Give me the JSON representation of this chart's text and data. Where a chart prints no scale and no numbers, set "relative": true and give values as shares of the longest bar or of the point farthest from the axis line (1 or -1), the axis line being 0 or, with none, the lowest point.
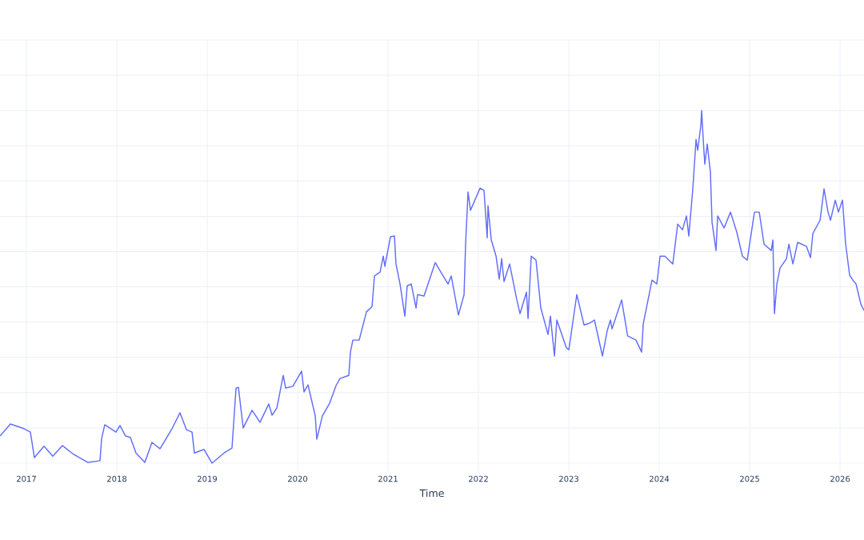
{
  "chart_data": {
    "type": "line",
    "xlabel": "Time",
    "relative": true,
    "grid": true,
    "color": "#636efa",
    "xlim": [
      2016.708,
      2026.265
    ],
    "xticks": [
      2017,
      2018,
      2019,
      2020,
      2021,
      2022,
      2023,
      2024,
      2025,
      2026
    ],
    "x": [
      2016.708,
      2016.823,
      2016.973,
      2017.044,
      2017.088,
      2017.195,
      2017.292,
      2017.398,
      2017.522,
      2017.681,
      2017.814,
      2017.832,
      2017.867,
      2017.991,
      2018.035,
      2018.097,
      2018.15,
      2018.212,
      2018.31,
      2018.389,
      2018.478,
      2018.611,
      2018.699,
      2018.77,
      2018.832,
      2018.858,
      2018.965,
      2019.053,
      2019.186,
      2019.274,
      2019.319,
      2019.345,
      2019.398,
      2019.496,
      2019.584,
      2019.681,
      2019.717,
      2019.77,
      2019.841,
      2019.867,
      2019.947,
      2020.044,
      2020.071,
      2020.115,
      2020.195,
      2020.212,
      2020.274,
      2020.354,
      2020.425,
      2020.469,
      2020.566,
      2020.584,
      2020.611,
      2020.681,
      2020.761,
      2020.823,
      2020.85,
      2020.912,
      2020.947,
      2020.965,
      2021.027,
      2021.071,
      2021.088,
      2021.133,
      2021.186,
      2021.212,
      2021.257,
      2021.31,
      2021.327,
      2021.398,
      2021.522,
      2021.584,
      2021.664,
      2021.699,
      2021.779,
      2021.841,
      2021.858,
      2021.885,
      2021.912,
      2022.018,
      2022.062,
      2022.097,
      2022.106,
      2022.142,
      2022.195,
      2022.23,
      2022.257,
      2022.283,
      2022.345,
      2022.425,
      2022.46,
      2022.531,
      2022.549,
      2022.584,
      2022.637,
      2022.69,
      2022.77,
      2022.796,
      2022.841,
      2022.867,
      2022.973,
      2023.0,
      2023.088,
      2023.168,
      2023.23,
      2023.283,
      2023.372,
      2023.425,
      2023.46,
      2023.478,
      2023.584,
      2023.65,
      2023.743,
      2023.805,
      2023.823,
      2023.92,
      2023.973,
      2024.009,
      2024.062,
      2024.15,
      2024.204,
      2024.257,
      2024.301,
      2024.327,
      2024.372,
      2024.407,
      2024.425,
      2024.46,
      2024.469,
      2024.487,
      2024.504,
      2024.531,
      2024.566,
      2024.584,
      2024.628,
      2024.646,
      2024.717,
      2024.788,
      2024.858,
      2024.92,
      2024.973,
      2025.053,
      2025.106,
      2025.159,
      2025.239,
      2025.257,
      2025.274,
      2025.301,
      2025.336,
      2025.407,
      2025.434,
      2025.478,
      2025.531,
      2025.628,
      2025.673,
      2025.699,
      2025.779,
      2025.823,
      2025.867,
      2025.894,
      2025.947,
      2025.982,
      2026.027,
      2026.062,
      2026.106,
      2026.142,
      2026.177,
      2026.23,
      2026.265
    ],
    "values": [
      0.077,
      0.111,
      0.098,
      0.088,
      0.016,
      0.048,
      0.02,
      0.05,
      0.025,
      0.002,
      0.007,
      0.07,
      0.109,
      0.088,
      0.107,
      0.077,
      0.073,
      0.029,
      0.002,
      0.059,
      0.041,
      0.098,
      0.143,
      0.095,
      0.088,
      0.029,
      0.039,
      0.0,
      0.029,
      0.043,
      0.213,
      0.215,
      0.1,
      0.15,
      0.116,
      0.168,
      0.136,
      0.156,
      0.249,
      0.213,
      0.218,
      0.261,
      0.202,
      0.222,
      0.134,
      0.068,
      0.134,
      0.17,
      0.22,
      0.24,
      0.249,
      0.315,
      0.349,
      0.349,
      0.429,
      0.444,
      0.531,
      0.542,
      0.587,
      0.558,
      0.642,
      0.644,
      0.565,
      0.508,
      0.417,
      0.503,
      0.508,
      0.44,
      0.478,
      0.474,
      0.569,
      0.542,
      0.508,
      0.531,
      0.42,
      0.478,
      0.621,
      0.769,
      0.717,
      0.78,
      0.773,
      0.639,
      0.73,
      0.633,
      0.587,
      0.522,
      0.58,
      0.515,
      0.565,
      0.463,
      0.424,
      0.485,
      0.41,
      0.587,
      0.576,
      0.44,
      0.365,
      0.417,
      0.304,
      0.406,
      0.327,
      0.322,
      0.478,
      0.392,
      0.397,
      0.406,
      0.304,
      0.376,
      0.406,
      0.381,
      0.463,
      0.361,
      0.349,
      0.315,
      0.395,
      0.519,
      0.508,
      0.587,
      0.587,
      0.565,
      0.678,
      0.662,
      0.701,
      0.644,
      0.78,
      0.918,
      0.887,
      0.957,
      1.0,
      0.916,
      0.848,
      0.905,
      0.825,
      0.683,
      0.603,
      0.701,
      0.667,
      0.712,
      0.655,
      0.587,
      0.576,
      0.712,
      0.712,
      0.621,
      0.603,
      0.633,
      0.424,
      0.508,
      0.553,
      0.58,
      0.621,
      0.565,
      0.626,
      0.615,
      0.583,
      0.651,
      0.689,
      0.778,
      0.712,
      0.689,
      0.746,
      0.712,
      0.746,
      0.621,
      0.533,
      0.519,
      0.508,
      0.451,
      0.433
    ]
  }
}
